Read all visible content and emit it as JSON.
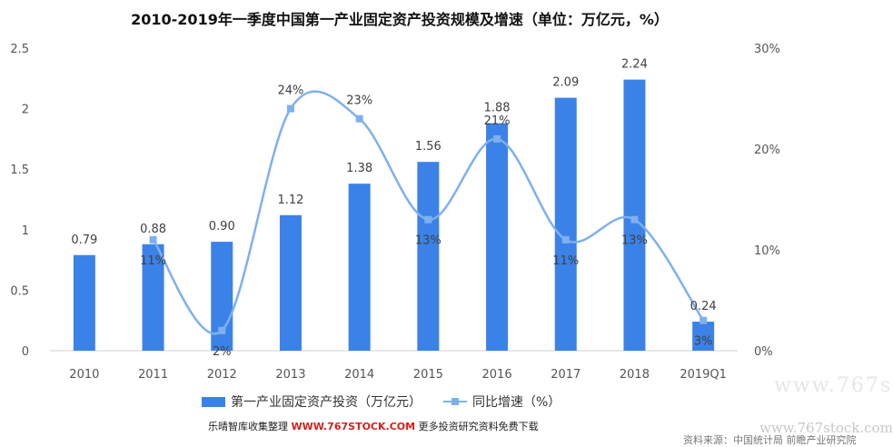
{
  "chart_data": {
    "type": "bar",
    "title": "2010-2019年一季度中国第一产业固定资产投资规模及增速（单位：万亿元，%）",
    "categories": [
      "2010",
      "2011",
      "2012",
      "2013",
      "2014",
      "2015",
      "2016",
      "2017",
      "2018",
      "2019Q1"
    ],
    "series": [
      {
        "name": "第一产业固定资产投资（万亿元）",
        "type": "bar",
        "axis": "left",
        "values": [
          0.79,
          0.88,
          0.9,
          1.12,
          1.38,
          1.56,
          1.88,
          2.09,
          2.24,
          0.24
        ],
        "labels": [
          "0.79",
          "0.88",
          "0.90",
          "1.12",
          "1.38",
          "1.56",
          "1.88",
          "2.09",
          "2.24",
          "0.24"
        ]
      },
      {
        "name": "同比增速（%）",
        "type": "line",
        "axis": "right",
        "values": [
          null,
          11,
          2,
          24,
          23,
          13,
          21,
          11,
          13,
          3
        ],
        "labels": [
          "",
          "11%",
          "2%",
          "24%",
          "23%",
          "13%",
          "21%",
          "11%",
          "13%",
          "3%"
        ]
      }
    ],
    "y_left": {
      "ylim": [
        0,
        2.5
      ],
      "ticks": [
        "0",
        "0.5",
        "1",
        "1.5",
        "2",
        "2.5"
      ]
    },
    "y_right": {
      "ylim": [
        0,
        30
      ],
      "ticks": [
        "0%",
        "10%",
        "20%",
        "30%"
      ]
    },
    "legend_position": "bottom",
    "grid": false,
    "colors": {
      "bar": "#3b82e8",
      "line": "#7fb0ee"
    }
  },
  "footer": {
    "collector": "乐晴智库收集整理",
    "url": "WWW.767STOCK.COM",
    "tagline": "更多投资研究资料免费下载"
  },
  "source": "资料来源：中国统计局 前瞻产业研究院",
  "watermark": {
    "site": "www.767stock.com",
    "partial": "www.767s"
  }
}
